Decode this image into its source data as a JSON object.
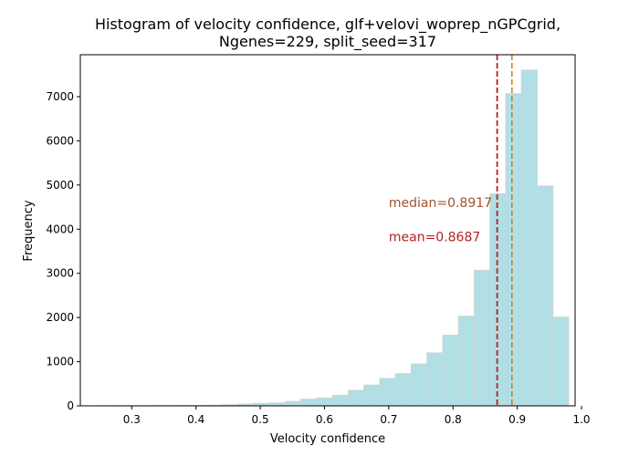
{
  "chart_data": {
    "type": "bar",
    "title_line1": "Histogram of velocity confidence, glf+velovi_woprep_nGPCgrid,",
    "title_line2": "Ngenes=229, split_seed=317",
    "xlabel": "Velocity confidence",
    "ylabel": "Frequency",
    "xlim": [
      0.22,
      0.99
    ],
    "ylim": [
      0,
      7950
    ],
    "xticks": [
      "0.3",
      "0.4",
      "0.5",
      "0.6",
      "0.7",
      "0.8",
      "0.9",
      "1.0"
    ],
    "yticks": [
      "0",
      "1000",
      "2000",
      "3000",
      "4000",
      "5000",
      "6000",
      "7000"
    ],
    "bins": {
      "start": 0.245,
      "width": 0.0245,
      "counts": [
        2,
        3,
        4,
        5,
        6,
        8,
        10,
        15,
        25,
        40,
        55,
        65,
        100,
        150,
        175,
        240,
        350,
        470,
        620,
        730,
        950,
        1200,
        1600,
        2030,
        3070,
        4800,
        7070,
        7600,
        4980,
        2010
      ]
    },
    "bar_color": "#b0dfe5",
    "bar_edge_color": "#d3d3d3",
    "mean": {
      "value": 0.8687,
      "label": "mean=0.8687",
      "color": "#b22222"
    },
    "median": {
      "value": 0.8917,
      "label": "median=0.8917",
      "color": "#a0522d",
      "line_color": "#d2781e"
    }
  }
}
